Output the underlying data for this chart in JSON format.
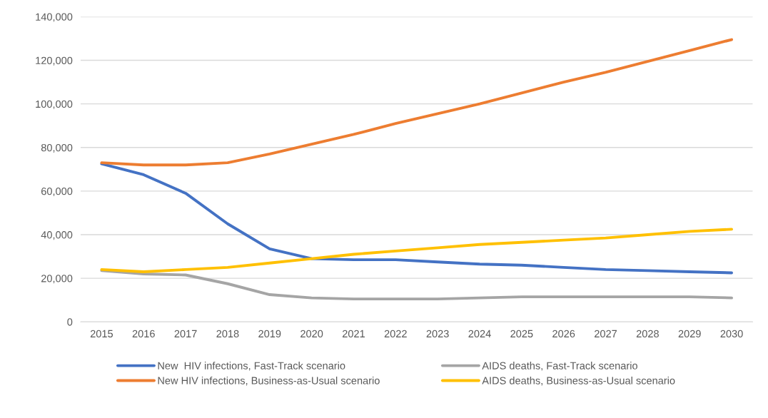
{
  "chart_data": {
    "type": "line",
    "categories": [
      "2015",
      "2016",
      "2017",
      "2018",
      "2019",
      "2020",
      "2021",
      "2022",
      "2023",
      "2024",
      "2025",
      "2026",
      "2027",
      "2028",
      "2029",
      "2030"
    ],
    "series": [
      {
        "name": "New  HIV infections, Fast-Track scenario",
        "color": "#4472c4",
        "values": [
          72500,
          67500,
          59000,
          45000,
          33500,
          29000,
          28500,
          28500,
          27500,
          26500,
          26000,
          25000,
          24000,
          23500,
          23000,
          22500
        ]
      },
      {
        "name": "New HIV infections, Business-as-Usual scenario",
        "color": "#ed7d31",
        "values": [
          73000,
          72000,
          72000,
          73000,
          77000,
          81500,
          86000,
          91000,
          95500,
          100000,
          105000,
          110000,
          114500,
          119500,
          124500,
          129500
        ]
      },
      {
        "name": "AIDS deaths, Fast-Track scenario",
        "color": "#a5a5a5",
        "values": [
          23500,
          22000,
          21500,
          17500,
          12500,
          11000,
          10500,
          10500,
          10500,
          11000,
          11500,
          11500,
          11500,
          11500,
          11500,
          11000
        ]
      },
      {
        "name": "AIDS deaths, Business-as-Usual scenario",
        "color": "#ffc000",
        "values": [
          24000,
          23000,
          24000,
          25000,
          27000,
          29000,
          31000,
          32500,
          34000,
          35500,
          36500,
          37500,
          38500,
          40000,
          41500,
          42500
        ]
      }
    ],
    "ylim": [
      0,
      140000
    ],
    "yticks": [
      {
        "value": 0,
        "label": "0"
      },
      {
        "value": 20000,
        "label": "20,000"
      },
      {
        "value": 40000,
        "label": "40,000"
      },
      {
        "value": 60000,
        "label": "60,000"
      },
      {
        "value": 80000,
        "label": "80,000"
      },
      {
        "value": 100000,
        "label": "100,000"
      },
      {
        "value": 120000,
        "label": "120,000"
      },
      {
        "value": 140000,
        "label": "140,000"
      }
    ],
    "grid": "y",
    "legend": "bottom",
    "marker": "none",
    "line_style": "solid"
  }
}
